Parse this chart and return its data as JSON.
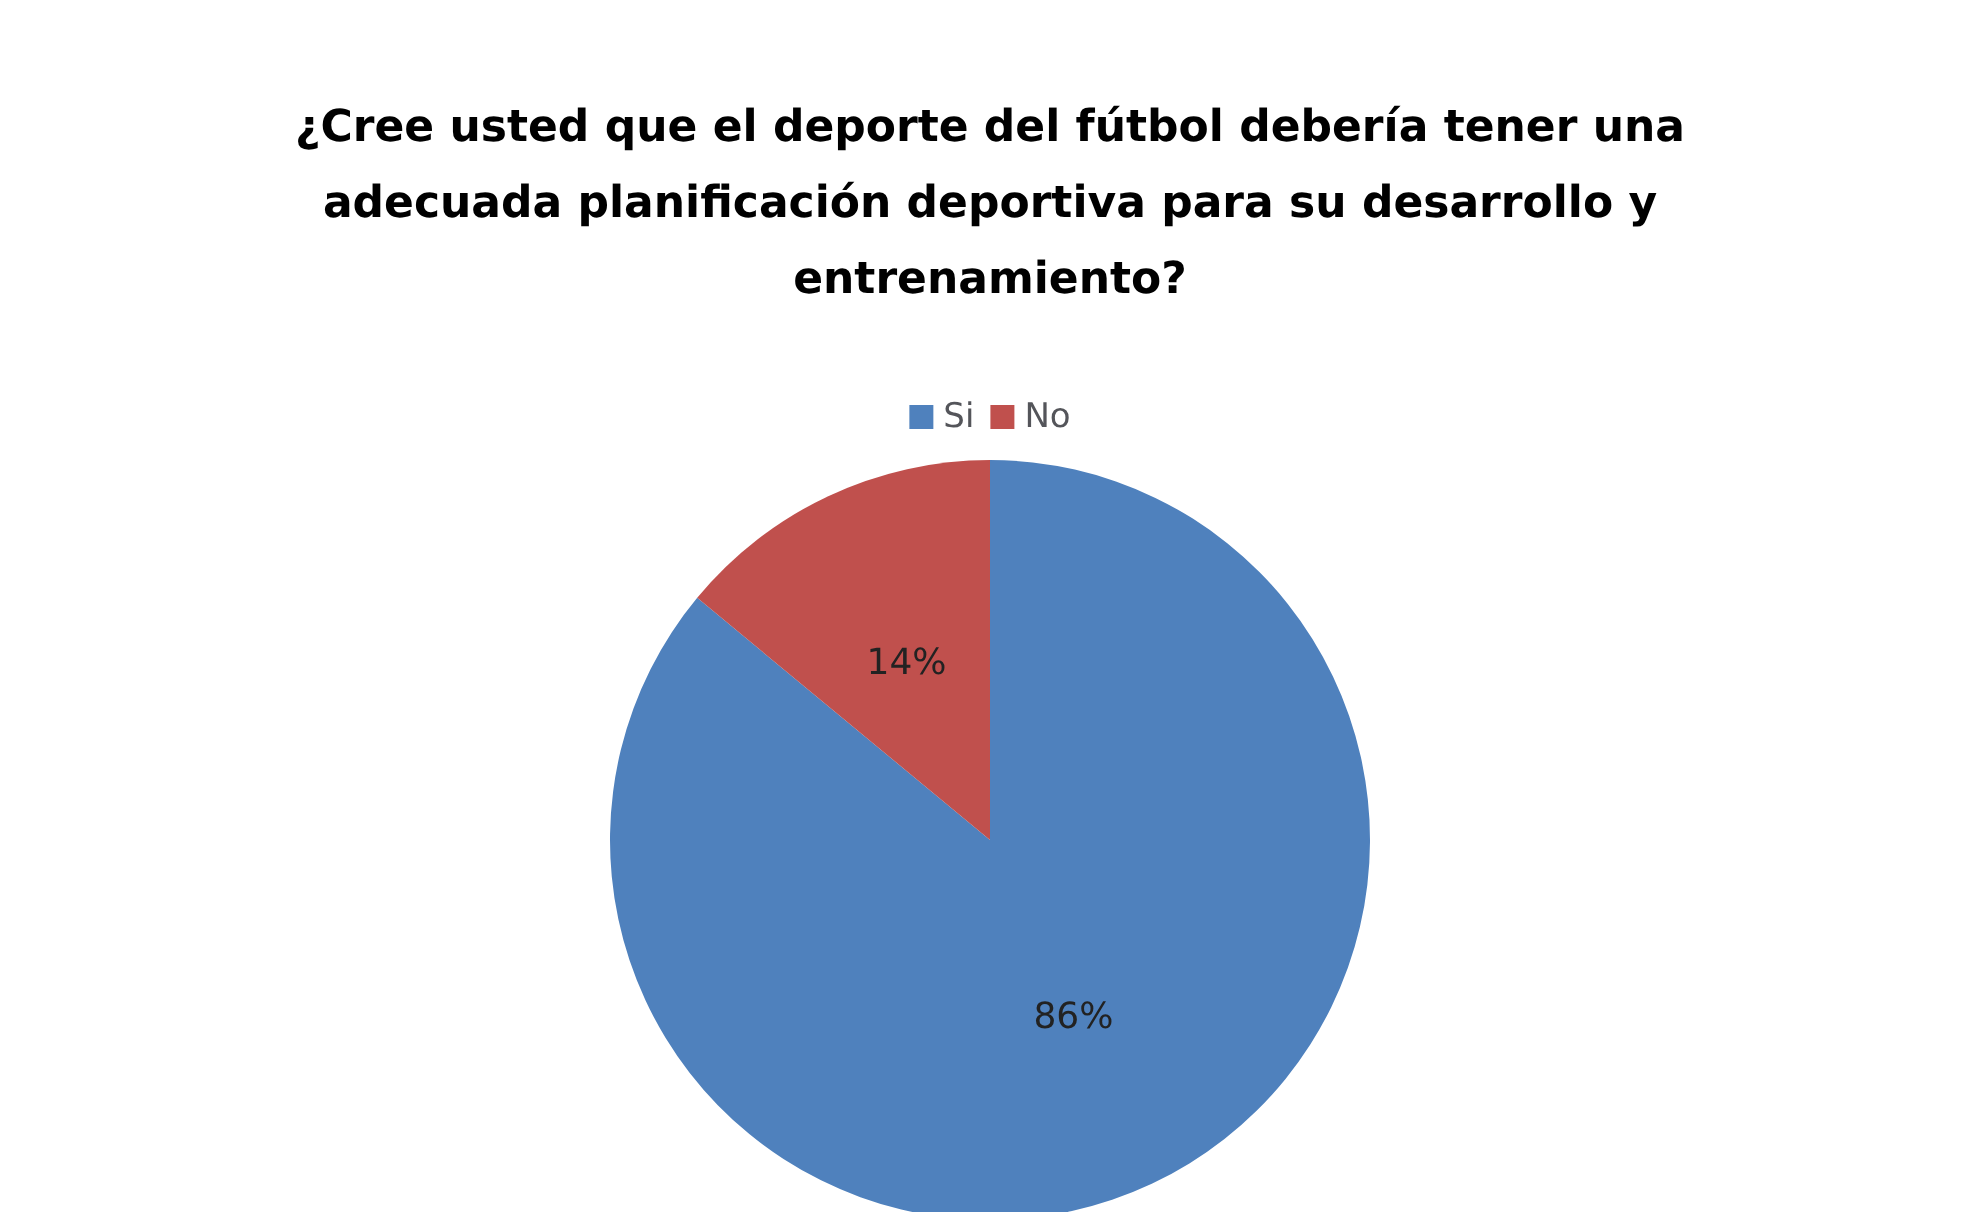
{
  "chart_data": {
    "type": "pie",
    "title": "¿Cree usted que el deporte del fútbol debería tener una\nadecuada planificación deportiva para su desarrollo y\nentrenamiento?",
    "categories": [
      "Si",
      "No"
    ],
    "values": [
      86,
      14
    ],
    "colors": [
      "#4f81bd",
      "#c0504d"
    ],
    "value_labels": [
      "86%",
      "14%"
    ],
    "legend": "top"
  }
}
